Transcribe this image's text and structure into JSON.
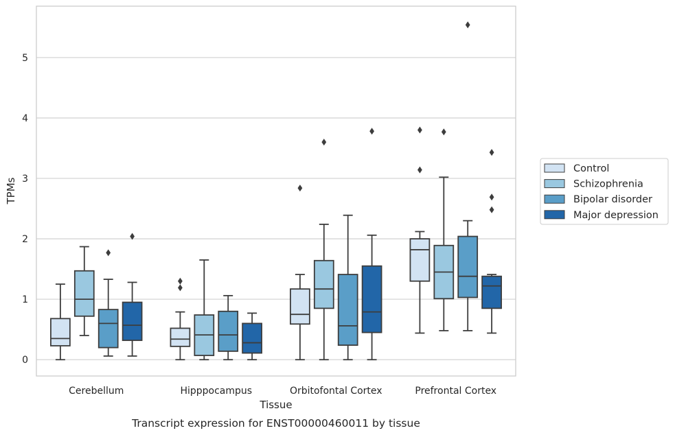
{
  "chart_data": {
    "type": "box",
    "caption": "Transcript expression for ENST00000460011 by tissue",
    "xlabel": "Tissue",
    "ylabel": "TPMs",
    "ylim": [
      -0.27,
      5.85
    ],
    "yticks": [
      0,
      1,
      2,
      3,
      4,
      5
    ],
    "grid": "horizontal",
    "legend_position": "right",
    "categories": [
      "Cerebellum",
      "Hipppocampus",
      "Orbitofontal Cortex",
      "Prefrontal Cortex"
    ],
    "series": [
      {
        "name": "Control",
        "color": "#d2e3f3",
        "boxes": [
          {
            "whisker_low": 0.0,
            "q1": 0.23,
            "median": 0.35,
            "q3": 0.68,
            "whisker_high": 1.25,
            "outliers": []
          },
          {
            "whisker_low": 0.0,
            "q1": 0.22,
            "median": 0.34,
            "q3": 0.52,
            "whisker_high": 0.79,
            "outliers": [
              1.3,
              1.19
            ]
          },
          {
            "whisker_low": 0.0,
            "q1": 0.59,
            "median": 0.75,
            "q3": 1.17,
            "whisker_high": 1.41,
            "outliers": [
              2.84
            ]
          },
          {
            "whisker_low": 0.44,
            "q1": 1.3,
            "median": 1.82,
            "q3": 2.0,
            "whisker_high": 2.12,
            "outliers": [
              3.14,
              3.8
            ]
          }
        ]
      },
      {
        "name": "Schizophrenia",
        "color": "#9ac8e0",
        "boxes": [
          {
            "whisker_low": 0.4,
            "q1": 0.72,
            "median": 1.0,
            "q3": 1.47,
            "whisker_high": 1.87,
            "outliers": []
          },
          {
            "whisker_low": 0.0,
            "q1": 0.07,
            "median": 0.41,
            "q3": 0.74,
            "whisker_high": 1.65,
            "outliers": []
          },
          {
            "whisker_low": 0.0,
            "q1": 0.85,
            "median": 1.17,
            "q3": 1.64,
            "whisker_high": 2.24,
            "outliers": [
              3.6
            ]
          },
          {
            "whisker_low": 0.48,
            "q1": 1.01,
            "median": 1.45,
            "q3": 1.89,
            "whisker_high": 3.02,
            "outliers": [
              3.77
            ]
          }
        ]
      },
      {
        "name": "Bipolar disorder",
        "color": "#5a9ec8",
        "boxes": [
          {
            "whisker_low": 0.06,
            "q1": 0.2,
            "median": 0.6,
            "q3": 0.83,
            "whisker_high": 1.33,
            "outliers": [
              1.77
            ]
          },
          {
            "whisker_low": 0.0,
            "q1": 0.14,
            "median": 0.41,
            "q3": 0.8,
            "whisker_high": 1.06,
            "outliers": []
          },
          {
            "whisker_low": 0.0,
            "q1": 0.24,
            "median": 0.56,
            "q3": 1.41,
            "whisker_high": 2.39,
            "outliers": []
          },
          {
            "whisker_low": 0.48,
            "q1": 1.03,
            "median": 1.38,
            "q3": 2.04,
            "whisker_high": 2.3,
            "outliers": [
              5.54
            ]
          }
        ]
      },
      {
        "name": "Major depression",
        "color": "#2266a8",
        "boxes": [
          {
            "whisker_low": 0.06,
            "q1": 0.32,
            "median": 0.57,
            "q3": 0.95,
            "whisker_high": 1.28,
            "outliers": [
              2.04
            ]
          },
          {
            "whisker_low": 0.0,
            "q1": 0.11,
            "median": 0.28,
            "q3": 0.6,
            "whisker_high": 0.77,
            "outliers": []
          },
          {
            "whisker_low": 0.0,
            "q1": 0.45,
            "median": 0.79,
            "q3": 1.55,
            "whisker_high": 2.06,
            "outliers": [
              3.78
            ]
          },
          {
            "whisker_low": 0.44,
            "q1": 0.85,
            "median": 1.22,
            "q3": 1.38,
            "whisker_high": 1.41,
            "outliers": [
              3.43,
              2.69,
              2.48
            ]
          }
        ]
      }
    ]
  }
}
